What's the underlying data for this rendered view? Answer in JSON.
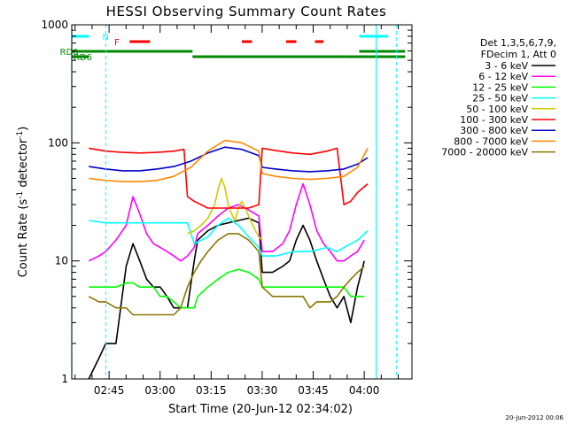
{
  "chart_data": {
    "type": "line",
    "title": "HESSI Observing Summary Count Rates",
    "xlabel": "Start Time (20-Jun-12 02:34:02)",
    "ylabel_main": "Count Rate (s",
    "ylabel_sup1": "-1",
    "ylabel_mid": " detector",
    "ylabel_sup2": "-1",
    "ylabel_end": ")",
    "xaxis_minutes_from_start": [
      0,
      100
    ],
    "yscale": "log",
    "ylim": [
      1,
      1000
    ],
    "x_ticks": [
      {
        "minutes": 10.97,
        "label": "02:45"
      },
      {
        "minutes": 25.97,
        "label": "03:00"
      },
      {
        "minutes": 40.97,
        "label": "03:15"
      },
      {
        "minutes": 55.97,
        "label": "03:30"
      },
      {
        "minutes": 70.97,
        "label": "03:45"
      },
      {
        "minutes": 85.97,
        "label": "04:00"
      }
    ],
    "y_ticks": [
      {
        "value": 1,
        "label": "1"
      },
      {
        "value": 10,
        "label": "10"
      },
      {
        "value": 100,
        "label": "100"
      },
      {
        "value": 1000,
        "label": "1000"
      }
    ],
    "legend_header": [
      "Det 1,3,5,6,7,9,",
      "FDecim 1, Att 0"
    ],
    "legend_placement": "right",
    "series": [
      {
        "name": "3 - 6 keV",
        "color": "#000000",
        "x": [
          5,
          8,
          10,
          13,
          16,
          18,
          20,
          22,
          24,
          26,
          28,
          30,
          32,
          34,
          36,
          37,
          40,
          43,
          46,
          49,
          52,
          55,
          56,
          59,
          62,
          64,
          66,
          68,
          70,
          72,
          74,
          76,
          78,
          80,
          82,
          84,
          86
        ],
        "y": [
          1,
          1.5,
          2,
          2,
          9,
          14,
          10,
          7,
          6,
          6,
          5,
          4,
          4,
          4,
          10,
          15,
          18,
          20,
          21,
          22,
          23,
          21,
          8,
          8,
          9,
          10,
          15,
          20,
          15,
          10,
          7,
          5,
          4,
          5,
          3,
          6,
          10
        ]
      },
      {
        "name": "6 - 12 keV",
        "color": "#ff00ff",
        "x": [
          5,
          8,
          10,
          13,
          16,
          18,
          20,
          22,
          24,
          26,
          28,
          30,
          32,
          34,
          36,
          37,
          40,
          43,
          46,
          49,
          52,
          55,
          56,
          59,
          62,
          64,
          66,
          68,
          70,
          72,
          74,
          76,
          78,
          80,
          82,
          84,
          86
        ],
        "y": [
          10,
          11,
          12,
          15,
          20,
          35,
          25,
          17,
          14,
          13,
          12,
          11,
          10,
          11,
          13,
          17,
          20,
          24,
          28,
          30,
          27,
          24,
          12,
          12,
          14,
          18,
          30,
          45,
          30,
          18,
          14,
          12,
          10,
          10,
          11,
          12,
          15
        ]
      },
      {
        "name": "12 - 25 keV",
        "color": "#00ff00",
        "x": [
          5,
          8,
          10,
          13,
          16,
          18,
          20,
          22,
          24,
          26,
          28,
          30,
          32,
          34,
          36,
          37,
          40,
          43,
          46,
          49,
          52,
          55,
          56,
          59,
          62,
          64,
          66,
          68,
          70,
          72,
          74,
          76,
          78,
          80,
          82,
          84,
          86
        ],
        "y": [
          6,
          6,
          6,
          6,
          6.5,
          6.5,
          6,
          6,
          6,
          5,
          5,
          4.5,
          4,
          4,
          4,
          5,
          6,
          7,
          8,
          8.5,
          8,
          7,
          6,
          6,
          6,
          6,
          6,
          6,
          6,
          6,
          6,
          6,
          6,
          6,
          5,
          5,
          5
        ]
      },
      {
        "name": "25 - 50 keV",
        "color": "#00ffff",
        "x": [
          5,
          10,
          15,
          20,
          25,
          30,
          34,
          36,
          40,
          43,
          46,
          49,
          52,
          55,
          56,
          60,
          65,
          70,
          75,
          78,
          80,
          84,
          87
        ],
        "y": [
          22,
          21,
          21,
          21,
          21,
          21,
          21,
          14,
          16,
          20,
          23,
          20,
          16,
          13,
          11,
          11,
          12,
          12,
          13,
          12,
          13,
          15,
          18
        ]
      },
      {
        "name": "50 - 100 keV",
        "color": "#cccc00",
        "x": [
          34,
          36,
          38,
          40,
          42,
          43,
          44,
          45,
          46,
          47,
          48,
          49,
          50,
          52,
          54,
          55,
          56
        ],
        "y": [
          17,
          18,
          20,
          23,
          30,
          40,
          50,
          42,
          30,
          25,
          22,
          28,
          32,
          24,
          18,
          16,
          15
        ]
      },
      {
        "name": "100 - 300 keV",
        "color": "#ff0000",
        "x": [
          5,
          10,
          15,
          20,
          25,
          30,
          33,
          34,
          36,
          38,
          40,
          42,
          44,
          46,
          48,
          50,
          52,
          55,
          56,
          60,
          65,
          70,
          75,
          78,
          80,
          82,
          84,
          87
        ],
        "y": [
          90,
          85,
          83,
          82,
          83,
          85,
          88,
          35,
          32,
          30,
          28,
          28,
          28,
          28,
          28,
          28,
          28,
          30,
          90,
          86,
          82,
          80,
          85,
          90,
          30,
          32,
          38,
          45
        ]
      },
      {
        "name": "300 - 800 keV",
        "color": "#0000cc",
        "x": [
          5,
          10,
          15,
          20,
          25,
          30,
          35,
          40,
          45,
          50,
          55,
          56,
          60,
          65,
          70,
          75,
          80,
          84,
          87
        ],
        "y": [
          63,
          60,
          58,
          58,
          60,
          63,
          70,
          82,
          92,
          88,
          78,
          62,
          60,
          58,
          57,
          58,
          60,
          66,
          75
        ]
      },
      {
        "name": "800 - 7000 keV",
        "color": "#ff8800",
        "x": [
          5,
          10,
          15,
          20,
          25,
          30,
          35,
          40,
          45,
          50,
          55,
          56,
          60,
          65,
          70,
          75,
          80,
          84,
          87
        ],
        "y": [
          50,
          48,
          47,
          47,
          48,
          52,
          62,
          85,
          105,
          100,
          85,
          55,
          52,
          50,
          49,
          50,
          52,
          62,
          90
        ]
      },
      {
        "name": "7000 - 20000 keV",
        "color": "#887700",
        "x": [
          5,
          8,
          10,
          13,
          16,
          18,
          20,
          22,
          24,
          26,
          28,
          30,
          32,
          34,
          36,
          38,
          40,
          43,
          46,
          49,
          52,
          55,
          56,
          59,
          62,
          64,
          66,
          68,
          70,
          72,
          74,
          76,
          78,
          80,
          82,
          84,
          86
        ],
        "y": [
          5,
          4.5,
          4.5,
          4,
          4,
          3.5,
          3.5,
          3.5,
          3.5,
          3.5,
          3.5,
          3.5,
          4,
          6,
          8,
          10,
          12,
          15,
          17,
          17,
          15,
          12,
          6,
          5,
          5,
          5,
          5,
          5,
          4,
          4.5,
          4.5,
          4.5,
          5,
          6,
          7,
          8,
          9
        ]
      }
    ],
    "flag_bars": [
      {
        "label": "N",
        "color": "#00ffff",
        "segments": [
          [
            0,
            5
          ],
          [
            84.5,
            93
          ]
        ]
      },
      {
        "label": "F",
        "color": "#ff0000",
        "segments": [
          [
            17,
            23
          ],
          [
            50,
            53
          ],
          [
            63,
            66
          ],
          [
            71.5,
            74
          ]
        ]
      },
      {
        "label": "RD0",
        "color": "#008800",
        "segments": [
          [
            0,
            35.5
          ],
          [
            84.5,
            98
          ]
        ]
      },
      {
        "label": "RD6",
        "color": "#008800",
        "segments": [
          [
            0,
            5
          ],
          [
            35.5,
            56
          ],
          [
            56,
            80
          ],
          [
            80,
            98
          ]
        ]
      }
    ],
    "grid": false
  },
  "footer": {
    "timestamp": "20-Jun-2012 00:06"
  }
}
